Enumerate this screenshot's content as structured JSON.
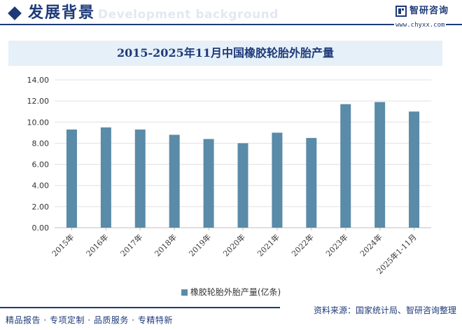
{
  "header": {
    "title": "发展背景",
    "watermark": "Development background"
  },
  "brand": {
    "name": "智研咨询",
    "url": "www.chyxx.com"
  },
  "chart_data": {
    "type": "bar",
    "title": "2015-2025年11月中国橡胶轮胎外胎产量",
    "categories": [
      "2015年",
      "2016年",
      "2017年",
      "2018年",
      "2019年",
      "2020年",
      "2021年",
      "2022年",
      "2023年",
      "2024年",
      "2025年1-11月"
    ],
    "series": [
      {
        "name": "橡胶轮胎外胎产量(亿条)",
        "values": [
          9.3,
          9.5,
          9.3,
          8.8,
          8.4,
          8.0,
          9.0,
          8.5,
          11.7,
          11.9,
          11.0
        ],
        "color": "#5a8ba8"
      }
    ],
    "yticks": [
      "0.00",
      "2.00",
      "4.00",
      "6.00",
      "8.00",
      "10.00",
      "12.00",
      "14.00"
    ],
    "ylim": [
      0,
      14
    ],
    "grid": true,
    "legend": "bottom"
  },
  "footer": {
    "left": "精品报告 · 专项定制 · 品质服务 · 专精特新",
    "right": "资料来源：国家统计局、智研咨询整理"
  }
}
